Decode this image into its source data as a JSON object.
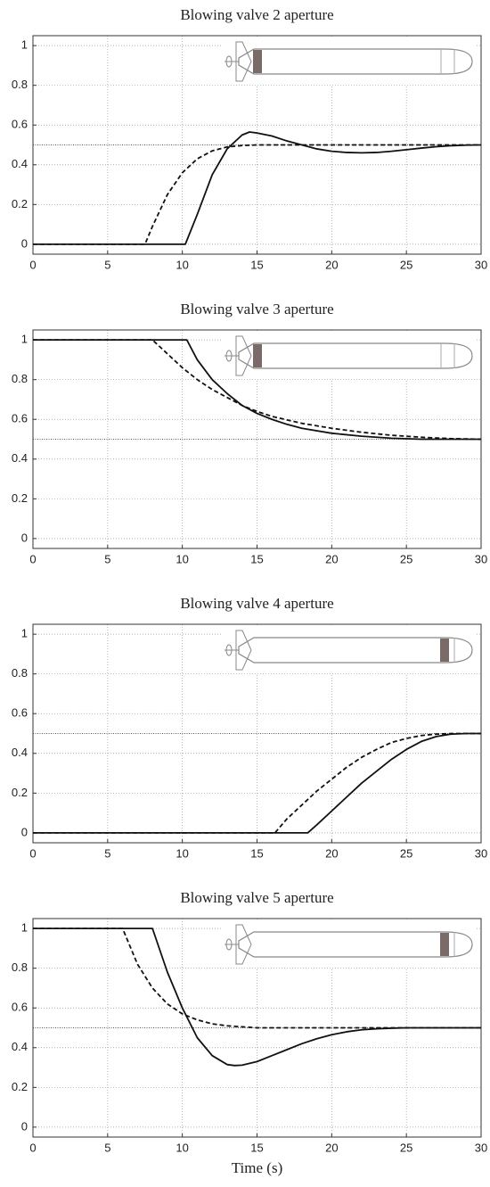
{
  "chart_data": [
    {
      "type": "line",
      "title": "Blowing valve 2 aperture",
      "xlim": [
        0,
        30
      ],
      "ylim": [
        -0.05,
        1.05
      ],
      "xticks": [
        0,
        5,
        10,
        15,
        20,
        25,
        30
      ],
      "yticks": [
        0,
        0.2,
        0.4,
        0.6,
        0.8,
        1
      ],
      "grid": true,
      "reference_line": 0.5,
      "series": [
        {
          "color": "#111111",
          "dash": false,
          "x": [
            0,
            10.2,
            11,
            12,
            13,
            14,
            14.5,
            15,
            16,
            17,
            18,
            19,
            20,
            21,
            22,
            23,
            24,
            25,
            26,
            27,
            28,
            29,
            30
          ],
          "values": [
            0,
            0,
            0.15,
            0.35,
            0.48,
            0.55,
            0.565,
            0.56,
            0.545,
            0.52,
            0.5,
            0.48,
            0.468,
            0.462,
            0.46,
            0.462,
            0.468,
            0.476,
            0.484,
            0.491,
            0.496,
            0.499,
            0.5
          ]
        },
        {
          "color": "#111111",
          "dash": true,
          "x": [
            0,
            7.5,
            8,
            9,
            10,
            11,
            12,
            13,
            14,
            15,
            16,
            18,
            20,
            25,
            30
          ],
          "values": [
            0,
            0,
            0.09,
            0.25,
            0.36,
            0.43,
            0.47,
            0.49,
            0.497,
            0.5,
            0.5,
            0.5,
            0.5,
            0.5,
            0.5
          ]
        }
      ]
    },
    {
      "type": "line",
      "title": "Blowing valve 3 aperture",
      "xlim": [
        0,
        30
      ],
      "ylim": [
        -0.05,
        1.05
      ],
      "xticks": [
        0,
        5,
        10,
        15,
        20,
        25,
        30
      ],
      "yticks": [
        0,
        0.2,
        0.4,
        0.6,
        0.8,
        1
      ],
      "grid": true,
      "reference_line": 0.5,
      "series": [
        {
          "color": "#111111",
          "dash": false,
          "x": [
            0,
            10.3,
            11,
            12,
            13,
            14,
            15,
            16,
            17,
            18,
            20,
            22,
            24,
            26,
            28,
            30
          ],
          "values": [
            1,
            1,
            0.9,
            0.8,
            0.73,
            0.67,
            0.63,
            0.6,
            0.575,
            0.555,
            0.53,
            0.515,
            0.505,
            0.5,
            0.5,
            0.5
          ]
        },
        {
          "color": "#111111",
          "dash": true,
          "x": [
            0,
            8,
            9,
            10,
            11,
            12,
            13,
            14,
            15,
            16,
            18,
            20,
            22,
            24,
            26,
            28,
            30
          ],
          "values": [
            1,
            1,
            0.93,
            0.86,
            0.8,
            0.75,
            0.71,
            0.67,
            0.64,
            0.615,
            0.58,
            0.555,
            0.535,
            0.52,
            0.51,
            0.503,
            0.5
          ]
        }
      ]
    },
    {
      "type": "line",
      "title": "Blowing valve 4 aperture",
      "xlim": [
        0,
        30
      ],
      "ylim": [
        -0.05,
        1.05
      ],
      "xticks": [
        0,
        5,
        10,
        15,
        20,
        25,
        30
      ],
      "yticks": [
        0,
        0.2,
        0.4,
        0.6,
        0.8,
        1
      ],
      "grid": true,
      "reference_line": 0.5,
      "series": [
        {
          "color": "#111111",
          "dash": false,
          "x": [
            0,
            18.4,
            19,
            20,
            21,
            22,
            23,
            24,
            25,
            26,
            27,
            28,
            29,
            30
          ],
          "values": [
            0,
            0,
            0.04,
            0.11,
            0.18,
            0.25,
            0.31,
            0.37,
            0.42,
            0.46,
            0.485,
            0.497,
            0.5,
            0.5
          ]
        },
        {
          "color": "#111111",
          "dash": true,
          "x": [
            0,
            16.2,
            17,
            18,
            19,
            20,
            21,
            22,
            23,
            24,
            25,
            26,
            27,
            28,
            30
          ],
          "values": [
            0,
            0,
            0.07,
            0.14,
            0.21,
            0.27,
            0.33,
            0.38,
            0.42,
            0.455,
            0.475,
            0.49,
            0.497,
            0.5,
            0.5
          ]
        }
      ]
    },
    {
      "type": "line",
      "title": "Blowing valve 5 aperture",
      "xlabel": "Time (s)",
      "xlim": [
        0,
        30
      ],
      "ylim": [
        -0.05,
        1.05
      ],
      "xticks": [
        0,
        5,
        10,
        15,
        20,
        25,
        30
      ],
      "yticks": [
        0,
        0.2,
        0.4,
        0.6,
        0.8,
        1
      ],
      "grid": true,
      "reference_line": 0.5,
      "series": [
        {
          "color": "#111111",
          "dash": false,
          "x": [
            0,
            8,
            9,
            10,
            11,
            12,
            13,
            13.5,
            14,
            15,
            16,
            17,
            18,
            19,
            20,
            21,
            22,
            23,
            24,
            25,
            30
          ],
          "values": [
            1,
            1,
            0.78,
            0.6,
            0.45,
            0.36,
            0.315,
            0.31,
            0.312,
            0.33,
            0.36,
            0.39,
            0.42,
            0.445,
            0.465,
            0.48,
            0.49,
            0.495,
            0.498,
            0.5,
            0.5
          ]
        },
        {
          "color": "#111111",
          "dash": true,
          "x": [
            0,
            6,
            7,
            8,
            9,
            10,
            11,
            12,
            13,
            14,
            15,
            16,
            18,
            20,
            30
          ],
          "values": [
            1,
            1,
            0.82,
            0.7,
            0.62,
            0.57,
            0.54,
            0.52,
            0.51,
            0.505,
            0.5,
            0.5,
            0.5,
            0.5,
            0.5
          ]
        }
      ]
    }
  ]
}
